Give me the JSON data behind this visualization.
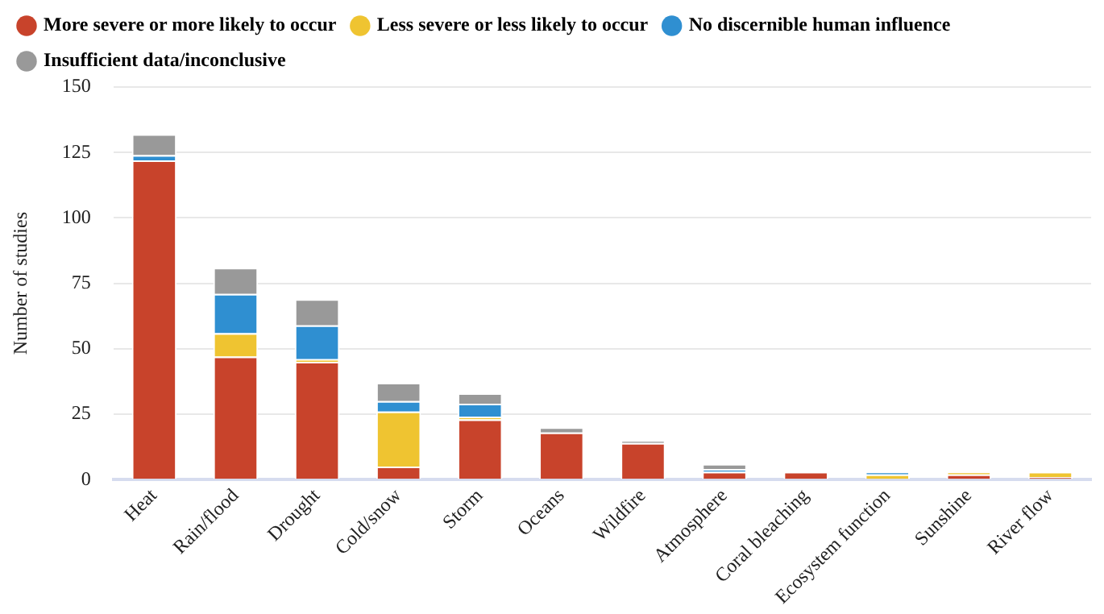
{
  "chart_data": {
    "type": "bar",
    "stacked": true,
    "ylabel": "Number of studies",
    "categories": [
      "Heat",
      "Rain/flood",
      "Drought",
      "Cold/snow",
      "Storm",
      "Oceans",
      "Wildfire",
      "Atmosphere",
      "Coral bleaching",
      "Ecosystem function",
      "Sunshine",
      "River flow"
    ],
    "series": [
      {
        "name": "More severe or more likely to occur",
        "color": "#c8432b",
        "values": [
          122,
          47,
          45,
          5,
          23,
          18,
          14,
          3,
          3,
          0,
          2,
          1
        ]
      },
      {
        "name": "Less severe or less likely to occur",
        "color": "#efc431",
        "values": [
          0,
          9,
          1,
          21,
          1,
          0,
          0,
          0,
          0,
          2,
          1,
          2
        ]
      },
      {
        "name": "No discernible human influence",
        "color": "#2f8fd1",
        "values": [
          2,
          15,
          13,
          4,
          5,
          0,
          0,
          1,
          0,
          1,
          0,
          0
        ]
      },
      {
        "name": "Insufficient data/inconclusive",
        "color": "#999999",
        "values": [
          8,
          10,
          10,
          7,
          4,
          2,
          1,
          2,
          0,
          0,
          0,
          0
        ]
      }
    ],
    "ylim": [
      0,
      150
    ],
    "yticks": [
      0,
      25,
      50,
      75,
      100,
      125,
      150
    ],
    "grid": "y",
    "legend": "top left"
  }
}
